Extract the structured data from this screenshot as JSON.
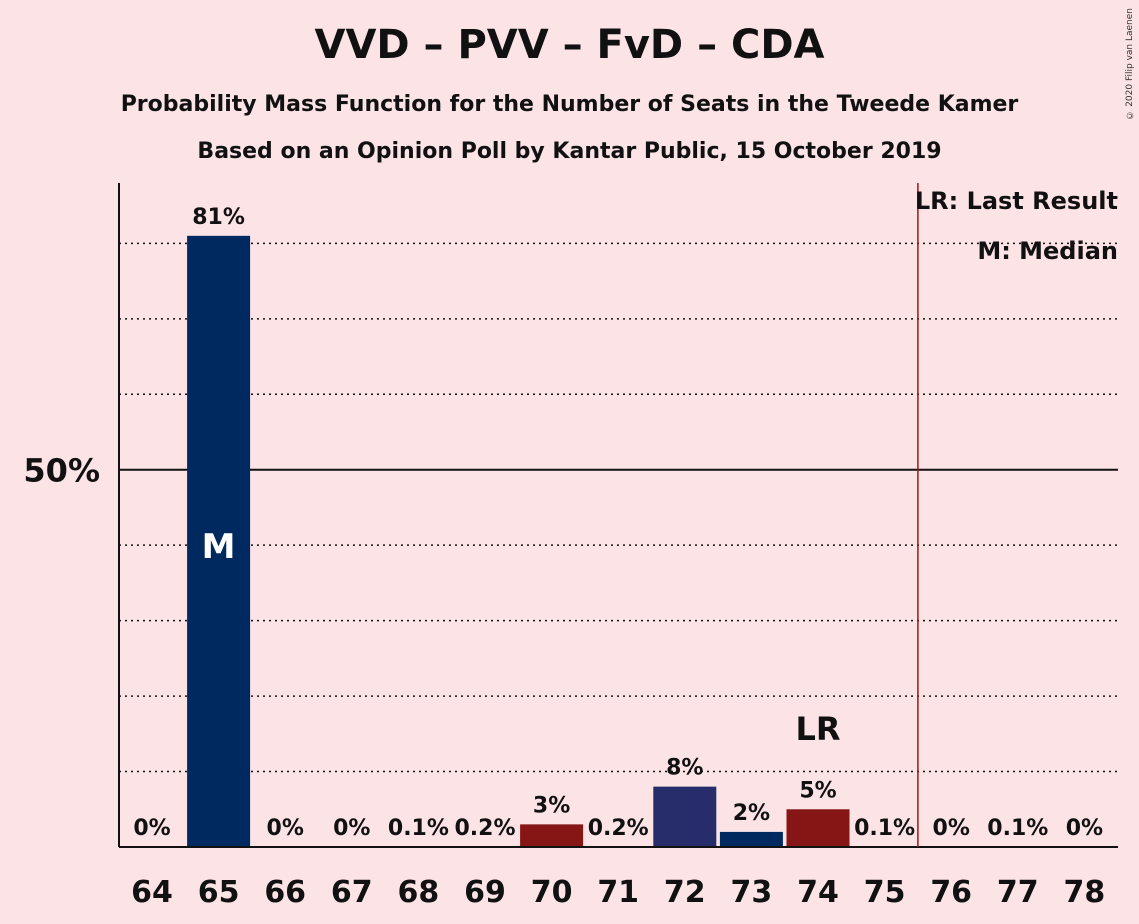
{
  "title": "VVD – PVV – FvD – CDA",
  "subtitle1": "Probability Mass Function for the Number of Seats in the Tweede Kamer",
  "subtitle2": "Based on an Opinion Poll by Kantar Public, 15 October 2019",
  "copyright": "© 2020 Filip van Laenen",
  "legend": {
    "last_result": "LR: Last Result",
    "median": "M: Median"
  },
  "colors": {
    "background": "#fce4e6",
    "vvd": "#002960",
    "pvv": "#272c6b",
    "red": "#861616",
    "majority_line": "#a3141f"
  },
  "chart_data": {
    "type": "bar",
    "categories": [
      "64",
      "65",
      "66",
      "67",
      "68",
      "69",
      "70",
      "71",
      "72",
      "73",
      "74",
      "75",
      "76",
      "77",
      "78"
    ],
    "values": [
      0,
      81,
      0,
      0,
      0.1,
      0.2,
      3,
      0.2,
      8,
      2,
      5,
      0.1,
      0,
      0.1,
      0
    ],
    "labels": [
      "0%",
      "81%",
      "0%",
      "0%",
      "0.1%",
      "0.2%",
      "3%",
      "0.2%",
      "8%",
      "2%",
      "5%",
      "0.1%",
      "0%",
      "0.1%",
      "0%"
    ],
    "bar_colors": [
      "#002960",
      "#002960",
      "#002960",
      "#002960",
      "#002960",
      "#002960",
      "#861616",
      "#002960",
      "#272c6b",
      "#002960",
      "#861616",
      "#002960",
      "#002960",
      "#002960",
      "#002960"
    ],
    "ylim": [
      0,
      88
    ],
    "yticks": [
      {
        "value": 50,
        "label": "50%"
      }
    ],
    "gridlines": [
      10,
      20,
      30,
      40,
      60,
      70,
      80
    ],
    "median_seat": "65",
    "median_label": "M",
    "last_result_seat": "74",
    "last_result_label": "LR",
    "majority_after_seat": "75"
  }
}
